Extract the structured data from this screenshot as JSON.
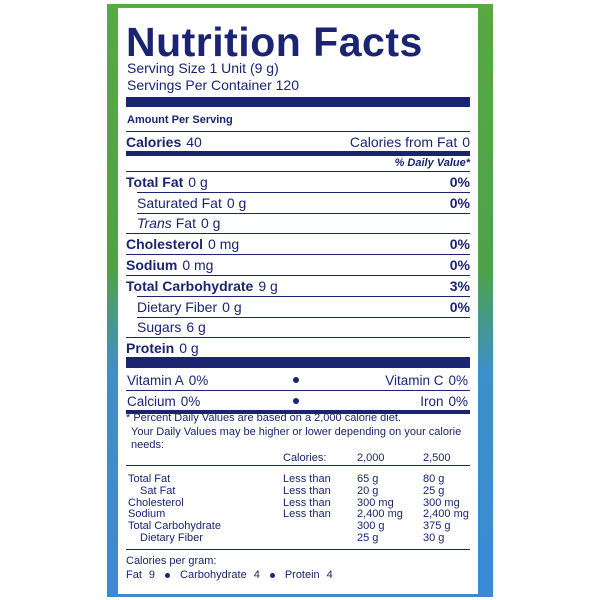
{
  "header": {
    "title": "Nutrition Facts",
    "serving_size": "Serving Size 1 Unit (9 g)",
    "servings_per_container": "Servings Per Container 120"
  },
  "amount_per_serving": "Amount Per Serving",
  "calories": {
    "label": "Calories",
    "value": "40",
    "from_fat_label": "Calories from Fat",
    "from_fat_value": "0"
  },
  "daily_value_header": "% Daily Value*",
  "nutrients": [
    {
      "label": "Total Fat",
      "amount": "0 g",
      "dv": "0%",
      "bold": true,
      "indent": false
    },
    {
      "label": "Saturated Fat",
      "amount": "0 g",
      "dv": "0%",
      "bold": false,
      "indent": true
    },
    {
      "prefix": "Trans",
      "label": "Fat",
      "amount": "0 g",
      "bold": false,
      "indent": true
    },
    {
      "label": "Cholesterol",
      "amount": "0 mg",
      "dv": "0%",
      "bold": true,
      "indent": false
    },
    {
      "label": "Sodium",
      "amount": "0 mg",
      "dv": "0%",
      "bold": true,
      "indent": false
    },
    {
      "label": "Total Carbohydrate",
      "amount": "9 g",
      "dv": "3%",
      "bold": true,
      "indent": false
    },
    {
      "label": "Dietary Fiber",
      "amount": "0 g",
      "dv": "0%",
      "bold": false,
      "indent": true
    },
    {
      "label": "Sugars",
      "amount": "6 g",
      "bold": false,
      "indent": true
    },
    {
      "label": "Protein",
      "amount": "0 g",
      "bold": true,
      "indent": false
    }
  ],
  "vitamins": [
    [
      {
        "label": "Vitamin A",
        "value": "0%"
      },
      {
        "label": "Vitamin C",
        "value": "0%"
      }
    ],
    [
      {
        "label": "Calcium",
        "value": "0%"
      },
      {
        "label": "Iron",
        "value": "0%"
      }
    ]
  ],
  "footnote": [
    "* Percent Daily Values are based on a 2,000 calorie diet.",
    "Your Daily Values may be higher or lower depending on your calorie",
    "needs:"
  ],
  "reference": {
    "header": [
      "Calories:",
      "2,000",
      "2,500"
    ],
    "rows": [
      {
        "name": "Total Fat",
        "limit": "Less than",
        "v2000": "65 g",
        "v2500": "80 g",
        "indent": false
      },
      {
        "name": "Sat Fat",
        "limit": "Less than",
        "v2000": "20 g",
        "v2500": "25 g",
        "indent": true
      },
      {
        "name": "Cholesterol",
        "limit": "Less than",
        "v2000": "300 mg",
        "v2500": "300 mg",
        "indent": false
      },
      {
        "name": "Sodium",
        "limit": "Less than",
        "v2000": "2,400 mg",
        "v2500": "2,400 mg",
        "indent": false
      },
      {
        "name": "Total Carbohydrate",
        "v2000": "300 g",
        "v2500": "375 g",
        "indent": false
      },
      {
        "name": "Dietary Fiber",
        "v2000": "25 g",
        "v2500": "30 g",
        "indent": true
      }
    ]
  },
  "calories_per_gram": {
    "label": "Calories per gram:",
    "items": [
      {
        "label": "Fat",
        "value": "9"
      },
      {
        "label": "Carbohydrate",
        "value": "4"
      },
      {
        "label": "Protein",
        "value": "4"
      }
    ]
  }
}
